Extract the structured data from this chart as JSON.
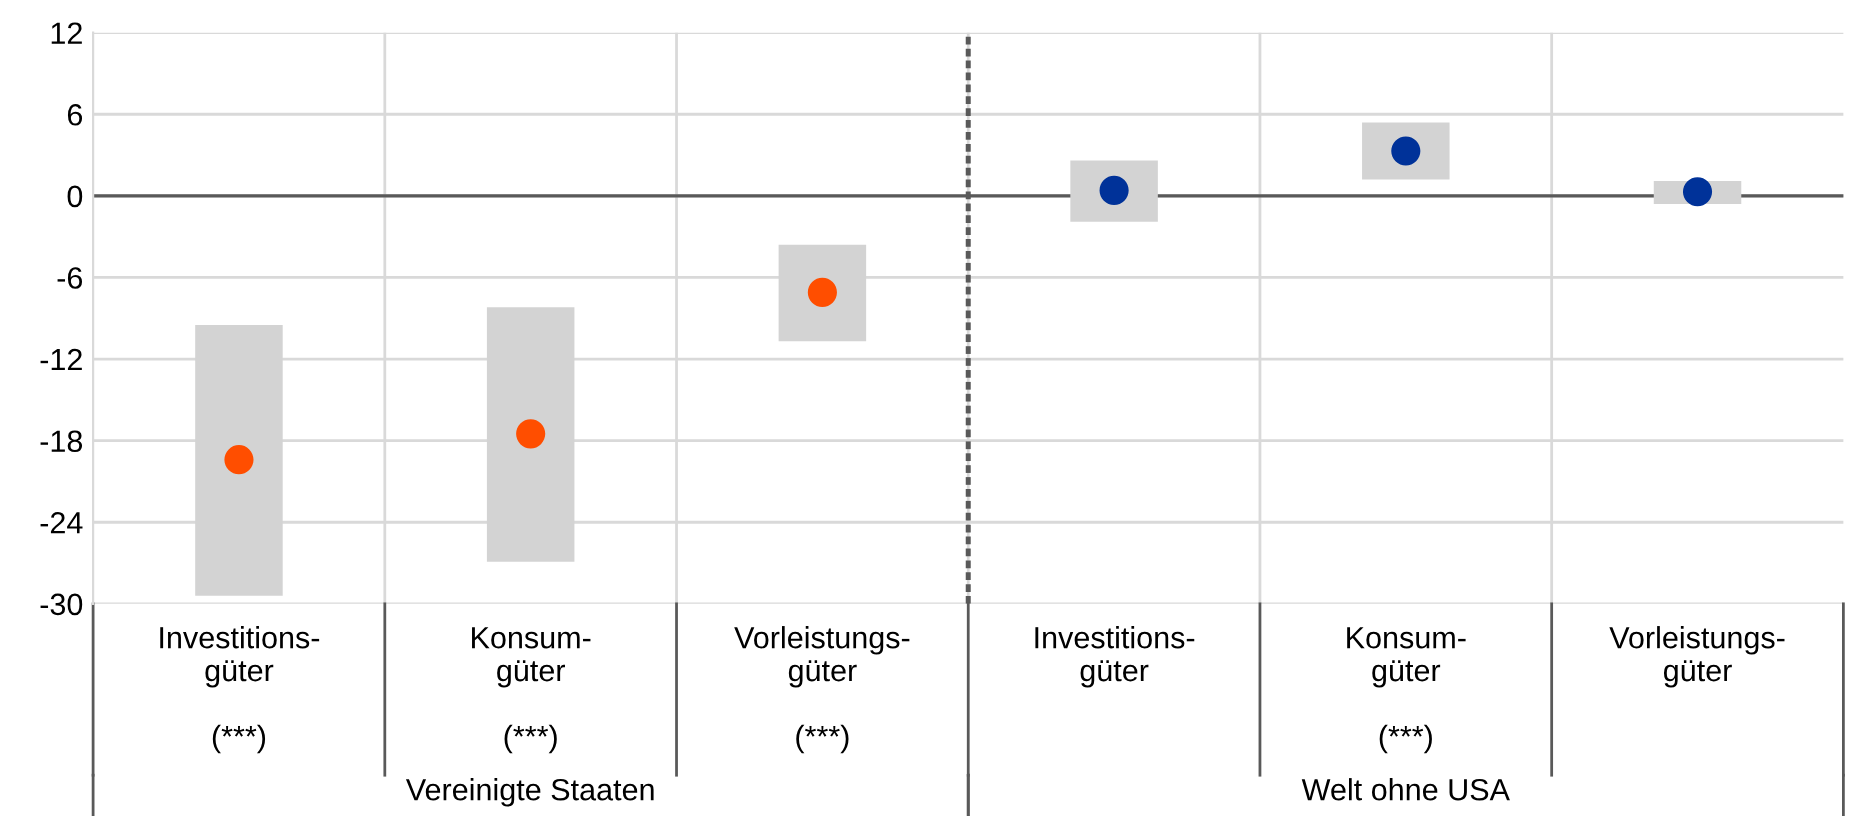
{
  "chart_data": {
    "type": "bar",
    "categories": [
      "Investitions-\ngüter\n\n(***)",
      "Konsum-\ngüter\n\n(***)",
      "Vorleistungs-\ngüter\n\n(***)",
      "Investitions-\ngüter",
      "Konsum-\ngüter\n\n(***)",
      "Vorleistungs-\ngüter"
    ],
    "series": [
      {
        "color": "#d3d3d3",
        "base": [
          -29.4,
          -26.9,
          -10.7,
          -1.9,
          1.2,
          -0.6
        ],
        "values": [
          19.9,
          18.7,
          7.1,
          4.5,
          4.2,
          1.7
        ]
      },
      {
        "type": "scatter",
        "colors": [
          "#ff4e00",
          "#ff4e00",
          "#ff4e00",
          "#003299",
          "#003299",
          "#003299"
        ],
        "values": [
          -19.4,
          -17.5,
          -7.1,
          0.4,
          3.3,
          0.3
        ]
      }
    ],
    "ylim": [
      -30,
      12
    ],
    "yticks": [
      -30,
      -24,
      -18,
      -12,
      -6,
      0,
      6,
      12
    ],
    "grid": true,
    "ref_lines": [
      {
        "axis": "y",
        "value": 0,
        "color": "#595959",
        "line_style": "solid"
      }
    ],
    "annotations": [
      "Vereinigte Staaten",
      "Welt ohne USA"
    ]
  }
}
